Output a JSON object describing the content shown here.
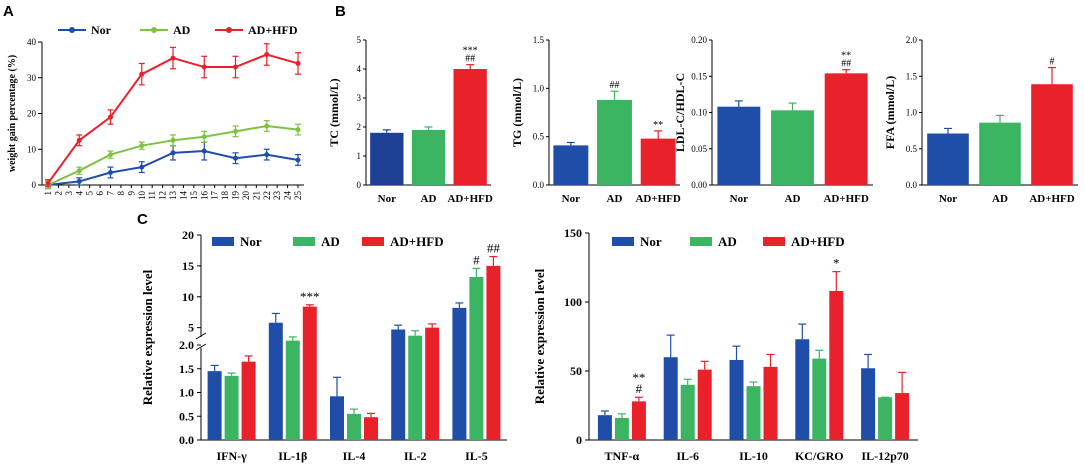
{
  "panel_labels": {
    "A": "A",
    "B": "B",
    "C": "C"
  },
  "colors": {
    "Nor": "#1f4ea8",
    "AD": "#3cb563",
    "AD+HFD": "#e8212a",
    "AD_line": "#7ec242",
    "Nor_B1": "#1d3f94"
  },
  "chart_data": [
    {
      "id": "A",
      "type": "line",
      "title": "",
      "ylabel": "weight gain percentage (%)",
      "xlabel": "",
      "ylim": [
        0,
        40
      ],
      "yticks": [
        "0",
        "10",
        "20",
        "30",
        "40"
      ],
      "x": [
        "1",
        "2",
        "3",
        "4",
        "5",
        "6",
        "7",
        "8",
        "9",
        "10",
        "11",
        "12",
        "13",
        "14",
        "15",
        "16",
        "17",
        "18",
        "19",
        "20",
        "21",
        "22",
        "23",
        "24",
        "25"
      ],
      "legend": [
        "Nor",
        "AD",
        "AD+HFD"
      ],
      "series": [
        {
          "name": "Nor",
          "points": [
            [
              1,
              0
            ],
            [
              4,
              1
            ],
            [
              7,
              3.5
            ],
            [
              10,
              5
            ],
            [
              13,
              9
            ],
            [
              16,
              9.5
            ],
            [
              19,
              7.5
            ],
            [
              22,
              8.5
            ],
            [
              25,
              7
            ]
          ],
          "errors": [
            1,
            1,
            1.5,
            1.5,
            2,
            2.5,
            1.5,
            1.5,
            1.5
          ]
        },
        {
          "name": "AD",
          "points": [
            [
              1,
              0
            ],
            [
              4,
              4
            ],
            [
              7,
              8.5
            ],
            [
              10,
              11
            ],
            [
              13,
              12.5
            ],
            [
              16,
              13.5
            ],
            [
              19,
              15
            ],
            [
              22,
              16.5
            ],
            [
              25,
              15.5
            ]
          ],
          "errors": [
            1,
            1,
            1,
            1,
            1.5,
            1.5,
            1.5,
            1.5,
            1.5
          ]
        },
        {
          "name": "AD+HFD",
          "points": [
            [
              1,
              0.5
            ],
            [
              4,
              12.5
            ],
            [
              7,
              19
            ],
            [
              10,
              31
            ],
            [
              13,
              35.5
            ],
            [
              16,
              33
            ],
            [
              19,
              33
            ],
            [
              22,
              36.5
            ],
            [
              25,
              34
            ]
          ],
          "errors": [
            1,
            1.5,
            2,
            3,
            3,
            3,
            3,
            3,
            3
          ]
        }
      ]
    },
    {
      "id": "B1",
      "type": "bar",
      "ylabel": "TC (mmol/L)",
      "categories": [
        "Nor",
        "AD",
        "AD+HFD"
      ],
      "values": [
        1.8,
        1.9,
        4.0
      ],
      "errors": [
        0.1,
        0.1,
        0.15
      ],
      "ylim": [
        0,
        5
      ],
      "yticks": [
        "0",
        "1",
        "2",
        "3",
        "4",
        "5"
      ],
      "annotations": [
        "",
        "",
        "***\n##"
      ]
    },
    {
      "id": "B2",
      "type": "bar",
      "ylabel": "TG (mmol/L)",
      "categories": [
        "Nor",
        "AD",
        "AD+HFD"
      ],
      "values": [
        0.41,
        0.88,
        0.48
      ],
      "errors": [
        0.03,
        0.09,
        0.08
      ],
      "ylim": [
        0,
        1.5
      ],
      "yticks": [
        "0.0",
        "0.5",
        "1.0",
        "1.5"
      ],
      "annotations": [
        "",
        "##",
        "**"
      ]
    },
    {
      "id": "B3",
      "type": "bar",
      "ylabel": "LDL-C/HDL-C",
      "categories": [
        "Nor",
        "AD",
        "AD+HFD"
      ],
      "values": [
        0.108,
        0.103,
        0.154
      ],
      "errors": [
        0.008,
        0.01,
        0.005
      ],
      "ylim": [
        0,
        0.2
      ],
      "yticks": [
        "0.00",
        "0.05",
        "0.10",
        "0.15",
        "0.20"
      ],
      "annotations": [
        "",
        "",
        "**\n##"
      ]
    },
    {
      "id": "B4",
      "type": "bar",
      "ylabel": "FFA (mmol/L)",
      "categories": [
        "Nor",
        "AD",
        "AD+HFD"
      ],
      "values": [
        0.71,
        0.86,
        1.39
      ],
      "errors": [
        0.07,
        0.1,
        0.23
      ],
      "ylim": [
        0,
        2.0
      ],
      "yticks": [
        "0.0",
        "0.5",
        "1.0",
        "1.5",
        "2.0"
      ],
      "annotations": [
        "",
        "",
        "#"
      ]
    },
    {
      "id": "C1",
      "type": "bar",
      "ylabel": "Relative expression level",
      "axis_break": true,
      "categories": [
        "IFN-γ",
        "IL-1β",
        "IL-4",
        "IL-2",
        "IL-5"
      ],
      "legend": [
        "Nor",
        "AD",
        "AD+HFD"
      ],
      "lower_range": [
        0,
        2.0
      ],
      "lower_ticks": [
        "0.0",
        "0.5",
        "1.0",
        "1.5",
        "2.0"
      ],
      "upper_range": [
        3,
        20
      ],
      "upper_ticks": [
        "5",
        "10",
        "15",
        "20"
      ],
      "series": [
        {
          "name": "Nor",
          "values": [
            1.45,
            5.8,
            0.92,
            4.7,
            8.2
          ],
          "errors": [
            0.12,
            1.5,
            0.4,
            0.7,
            0.8
          ]
        },
        {
          "name": "AD",
          "values": [
            1.35,
            2.9,
            0.55,
            3.7,
            13.2
          ],
          "errors": [
            0.06,
            0.6,
            0.1,
            0.8,
            1.4
          ]
        },
        {
          "name": "AD+HFD",
          "values": [
            1.65,
            8.4,
            0.48,
            5.0,
            15.0
          ],
          "errors": [
            0.12,
            0.3,
            0.08,
            0.6,
            1.5
          ]
        }
      ],
      "annotations": [
        {
          "category": "IL-1β",
          "series": "AD+HFD",
          "text": "***"
        },
        {
          "category": "IL-5",
          "series": "AD",
          "text": "#"
        },
        {
          "category": "IL-5",
          "series": "AD+HFD",
          "text": "##"
        }
      ]
    },
    {
      "id": "C2",
      "type": "bar",
      "ylabel": "Relative expression level",
      "categories": [
        "TNF-α",
        "IL-6",
        "IL-10",
        "KC/GRO",
        "IL-12p70"
      ],
      "legend": [
        "Nor",
        "AD",
        "AD+HFD"
      ],
      "ylim": [
        0,
        150
      ],
      "yticks": [
        "0",
        "50",
        "100",
        "150"
      ],
      "series": [
        {
          "name": "Nor",
          "values": [
            18,
            60,
            58,
            73,
            52
          ],
          "errors": [
            3,
            16,
            10,
            11,
            10
          ]
        },
        {
          "name": "AD",
          "values": [
            16,
            40,
            39,
            59,
            31
          ],
          "errors": [
            3,
            4,
            3,
            6,
            0
          ]
        },
        {
          "name": "AD+HFD",
          "values": [
            28,
            51,
            53,
            108,
            34
          ],
          "errors": [
            3,
            6,
            9,
            14,
            15
          ]
        }
      ],
      "annotations": [
        {
          "category": "TNF-α",
          "series": "AD+HFD",
          "text": "**\n#"
        },
        {
          "category": "KC/GRO",
          "series": "AD+HFD",
          "text": "*"
        }
      ]
    }
  ]
}
